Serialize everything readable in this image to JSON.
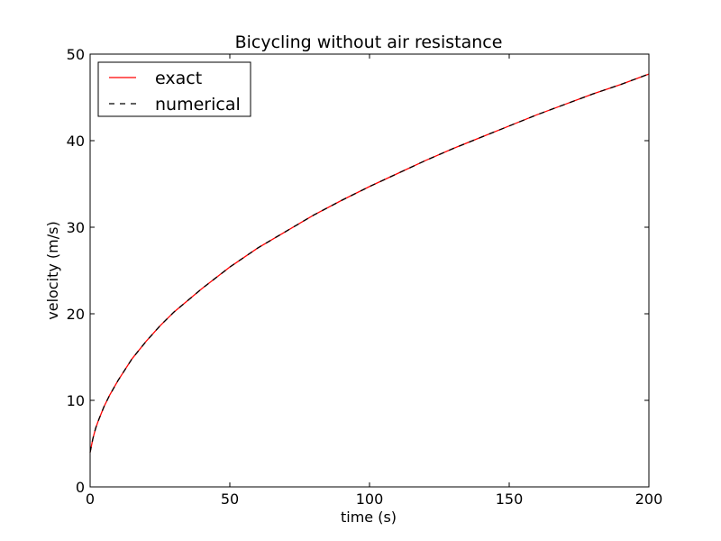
{
  "chart_data": {
    "type": "line",
    "title": "Bicycling without air resistance",
    "xlabel": "time (s)",
    "ylabel": "velocity (m/s)",
    "xlim": [
      0,
      200
    ],
    "ylim": [
      0,
      50
    ],
    "xticks": [
      "0",
      "50",
      "100",
      "150",
      "200"
    ],
    "yticks": [
      "0",
      "10",
      "20",
      "30",
      "40",
      "50"
    ],
    "grid": false,
    "legend_position": "top-left",
    "series": [
      {
        "name": "exact",
        "color": "#ff0000",
        "line_style": "solid",
        "x": [
          0,
          1,
          2,
          3,
          5,
          7,
          10,
          15,
          20,
          25,
          30,
          40,
          50,
          60,
          70,
          80,
          90,
          100,
          110,
          120,
          130,
          140,
          150,
          160,
          170,
          180,
          190,
          200
        ],
        "y": [
          4.0,
          5.6,
          6.8,
          7.7,
          9.3,
          10.6,
          12.3,
          14.8,
          16.8,
          18.6,
          20.2,
          22.9,
          25.4,
          27.6,
          29.5,
          31.4,
          33.1,
          34.7,
          36.2,
          37.7,
          39.1,
          40.4,
          41.7,
          43.0,
          44.2,
          45.4,
          46.5,
          47.7
        ]
      },
      {
        "name": "numerical",
        "color": "#000000",
        "line_style": "dashed",
        "x": [
          0,
          1,
          2,
          3,
          5,
          7,
          10,
          15,
          20,
          25,
          30,
          40,
          50,
          60,
          70,
          80,
          90,
          100,
          110,
          120,
          130,
          140,
          150,
          160,
          170,
          180,
          190,
          200
        ],
        "y": [
          4.0,
          5.6,
          6.8,
          7.7,
          9.3,
          10.6,
          12.3,
          14.8,
          16.8,
          18.6,
          20.2,
          22.9,
          25.4,
          27.6,
          29.5,
          31.4,
          33.1,
          34.7,
          36.2,
          37.7,
          39.1,
          40.4,
          41.7,
          43.0,
          44.2,
          45.4,
          46.5,
          47.7
        ]
      }
    ]
  }
}
